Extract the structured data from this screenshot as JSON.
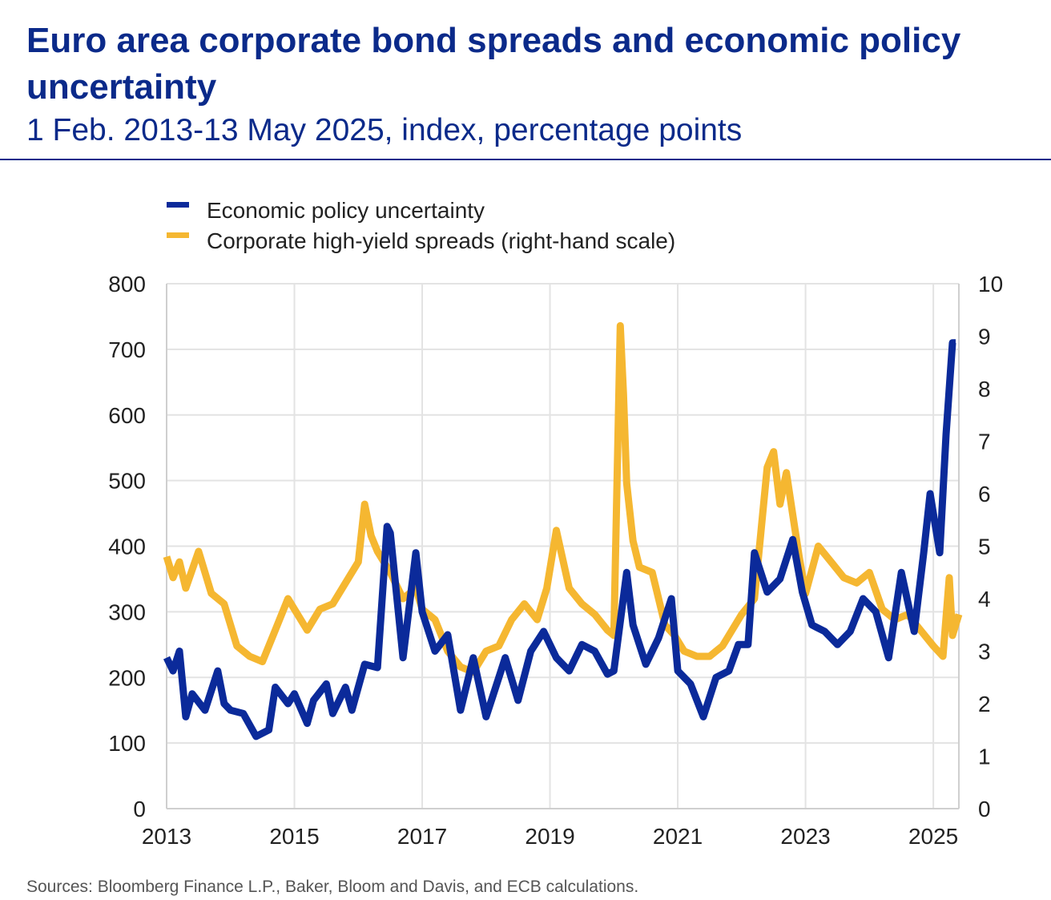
{
  "header": {
    "title": "Euro area corporate bond spreads and economic policy uncertainty",
    "subtitle": "1 Feb. 2013-13 May 2025, index, percentage points"
  },
  "footer": {
    "source": "Sources: Bloomberg Finance L.P., Baker, Bloom and Davis, and ECB calculations."
  },
  "colors": {
    "epu": "#0b2a9a",
    "spread": "#f5b731",
    "text": "#222222",
    "grid": "#e3e3e3"
  },
  "chart_data": {
    "type": "line",
    "title": "Euro area corporate bond spreads and economic policy uncertainty",
    "subtitle": "1 Feb. 2013-13 May 2025, index, percentage points",
    "x_ticks": [
      "2013",
      "2015",
      "2017",
      "2019",
      "2021",
      "2023",
      "2025"
    ],
    "x_range": [
      2013.0,
      2025.4
    ],
    "y_left": {
      "range": [
        0,
        800
      ],
      "ticks": [
        0,
        100,
        200,
        300,
        400,
        500,
        600,
        700,
        800
      ]
    },
    "y_right": {
      "range": [
        0,
        10
      ],
      "ticks": [
        0,
        1,
        2,
        3,
        4,
        5,
        6,
        7,
        8,
        9,
        10
      ]
    },
    "grid": true,
    "legend_position": "top-left",
    "series": [
      {
        "name": "Economic policy uncertainty",
        "axis": "left",
        "color": "#0b2a9a",
        "x": [
          2013.0,
          2013.1,
          2013.2,
          2013.3,
          2013.4,
          2013.6,
          2013.8,
          2013.9,
          2014.0,
          2014.2,
          2014.4,
          2014.6,
          2014.7,
          2014.9,
          2015.0,
          2015.2,
          2015.3,
          2015.5,
          2015.6,
          2015.8,
          2015.9,
          2016.1,
          2016.3,
          2016.45,
          2016.5,
          2016.7,
          2016.9,
          2017.0,
          2017.2,
          2017.4,
          2017.6,
          2017.8,
          2018.0,
          2018.1,
          2018.3,
          2018.5,
          2018.7,
          2018.9,
          2019.1,
          2019.3,
          2019.5,
          2019.7,
          2019.9,
          2020.0,
          2020.2,
          2020.3,
          2020.5,
          2020.7,
          2020.9,
          2021.0,
          2021.2,
          2021.4,
          2021.6,
          2021.8,
          2021.95,
          2022.1,
          2022.2,
          2022.4,
          2022.6,
          2022.8,
          2022.95,
          2023.1,
          2023.3,
          2023.5,
          2023.7,
          2023.9,
          2024.1,
          2024.3,
          2024.5,
          2024.7,
          2024.85,
          2024.95,
          2025.1,
          2025.2,
          2025.3,
          2025.35
        ],
        "values": [
          230,
          210,
          240,
          140,
          175,
          150,
          210,
          160,
          150,
          145,
          110,
          120,
          185,
          160,
          175,
          130,
          165,
          190,
          145,
          185,
          150,
          220,
          215,
          430,
          420,
          230,
          390,
          300,
          240,
          265,
          150,
          230,
          140,
          170,
          230,
          165,
          240,
          270,
          230,
          210,
          250,
          240,
          205,
          210,
          360,
          280,
          220,
          260,
          320,
          210,
          190,
          140,
          200,
          210,
          250,
          250,
          390,
          330,
          350,
          410,
          330,
          280,
          270,
          250,
          270,
          320,
          300,
          230,
          360,
          270,
          390,
          480,
          390,
          570,
          710,
          710
        ]
      },
      {
        "name": "Corporate high-yield spreads (right-hand scale)",
        "axis": "right",
        "color": "#f5b731",
        "x": [
          2013.0,
          2013.1,
          2013.2,
          2013.3,
          2013.5,
          2013.7,
          2013.9,
          2014.1,
          2014.3,
          2014.5,
          2014.7,
          2014.9,
          2015.0,
          2015.2,
          2015.4,
          2015.6,
          2015.8,
          2016.0,
          2016.1,
          2016.2,
          2016.3,
          2016.5,
          2016.7,
          2016.9,
          2017.0,
          2017.2,
          2017.4,
          2017.6,
          2017.8,
          2018.0,
          2018.2,
          2018.4,
          2018.6,
          2018.8,
          2018.95,
          2019.1,
          2019.3,
          2019.5,
          2019.7,
          2019.9,
          2020.0,
          2020.1,
          2020.15,
          2020.2,
          2020.3,
          2020.4,
          2020.6,
          2020.8,
          2020.95,
          2021.1,
          2021.3,
          2021.5,
          2021.7,
          2021.9,
          2022.0,
          2022.2,
          2022.4,
          2022.5,
          2022.6,
          2022.7,
          2022.8,
          2022.9,
          2023.0,
          2023.2,
          2023.4,
          2023.6,
          2023.8,
          2024.0,
          2024.2,
          2024.4,
          2024.6,
          2024.8,
          2025.0,
          2025.15,
          2025.25,
          2025.3,
          2025.4
        ],
        "values": [
          4.8,
          4.4,
          4.7,
          4.2,
          4.9,
          4.1,
          3.9,
          3.1,
          2.9,
          2.8,
          3.4,
          4.0,
          3.8,
          3.4,
          3.8,
          3.9,
          4.3,
          4.7,
          5.8,
          5.2,
          4.9,
          4.5,
          4.0,
          4.2,
          3.8,
          3.6,
          3.0,
          2.7,
          2.6,
          3.0,
          3.1,
          3.6,
          3.9,
          3.6,
          4.2,
          5.3,
          4.2,
          3.9,
          3.7,
          3.4,
          3.3,
          9.2,
          7.9,
          6.2,
          5.1,
          4.6,
          4.5,
          3.5,
          3.3,
          3.0,
          2.9,
          2.9,
          3.1,
          3.5,
          3.7,
          4.0,
          6.5,
          6.8,
          5.8,
          6.4,
          5.6,
          4.8,
          4.1,
          5.0,
          4.7,
          4.4,
          4.3,
          4.5,
          3.8,
          3.6,
          3.7,
          3.4,
          3.1,
          2.9,
          4.4,
          3.3,
          3.7
        ]
      }
    ]
  }
}
